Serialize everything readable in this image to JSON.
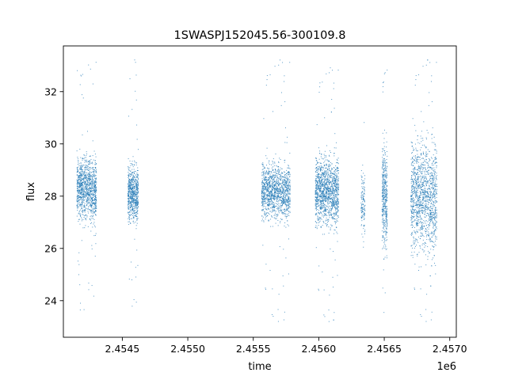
{
  "chart_data": {
    "type": "scatter",
    "title": "1SWASPJ152045.56-300109.8",
    "xlabel": "time",
    "ylabel": "flux",
    "x_offset_label": "1e6",
    "xlim": [
      2.45405,
      2.45705
    ],
    "ylim": [
      22.6,
      33.75
    ],
    "x_ticks": [
      2.4545,
      2.455,
      2.4555,
      2.456,
      2.4565,
      2.457
    ],
    "x_tick_labels": [
      "2.4545",
      "2.4550",
      "2.4555",
      "2.4560",
      "2.4565",
      "2.4570"
    ],
    "y_ticks": [
      24,
      26,
      28,
      30,
      32
    ],
    "y_tick_labels": [
      "24",
      "26",
      "28",
      "30",
      "32"
    ],
    "grid": false,
    "marker_color": "#1f77b4",
    "clusters": [
      {
        "x_start": 2.45415,
        "x_end": 2.4543,
        "y_center": 28.3,
        "y_spread": 1.0,
        "y_min": 23.3,
        "y_max": 33.3,
        "density": 1.3
      },
      {
        "x_start": 2.45454,
        "x_end": 2.45462,
        "y_center": 28.1,
        "y_spread": 0.9,
        "y_min": 23.5,
        "y_max": 33.3,
        "density": 0.8
      },
      {
        "x_start": 2.45556,
        "x_end": 2.45578,
        "y_center": 28.2,
        "y_spread": 0.9,
        "y_min": 23.1,
        "y_max": 33.3,
        "density": 1.5
      },
      {
        "x_start": 2.45597,
        "x_end": 2.45615,
        "y_center": 28.2,
        "y_spread": 1.1,
        "y_min": 23.1,
        "y_max": 33.0,
        "density": 1.6
      },
      {
        "x_start": 2.45632,
        "x_end": 2.45635,
        "y_center": 27.8,
        "y_spread": 1.2,
        "y_min": 26.0,
        "y_max": 31.3,
        "density": 0.15
      },
      {
        "x_start": 2.45648,
        "x_end": 2.45652,
        "y_center": 28.0,
        "y_spread": 1.6,
        "y_min": 23.2,
        "y_max": 33.0,
        "density": 0.5
      },
      {
        "x_start": 2.4567,
        "x_end": 2.4569,
        "y_center": 28.0,
        "y_spread": 1.8,
        "y_min": 23.1,
        "y_max": 33.3,
        "density": 1.6
      }
    ]
  }
}
